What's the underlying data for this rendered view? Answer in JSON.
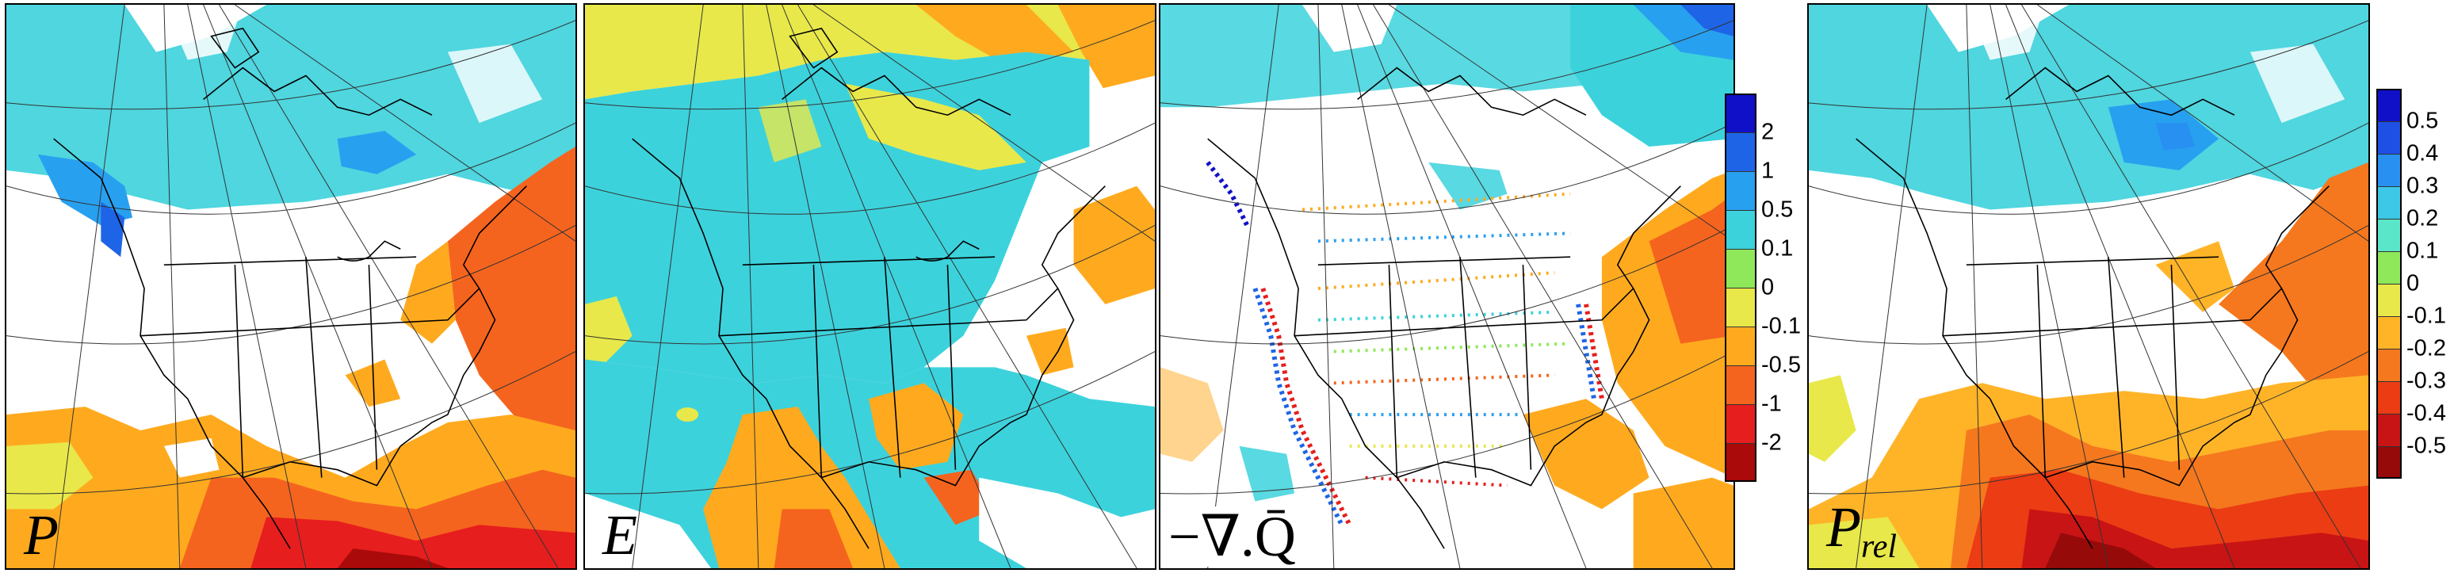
{
  "panels": [
    {
      "id": "P",
      "label_main": "P",
      "label_sub": ""
    },
    {
      "id": "E",
      "label_main": "E",
      "label_sub": ""
    },
    {
      "id": "divQ",
      "label_main": "−∇.Q̄",
      "label_sub": ""
    },
    {
      "id": "Prel",
      "label_main": "P",
      "label_sub": "rel"
    }
  ],
  "colorbars": [
    {
      "id": "absolute",
      "ticks": [
        "2",
        "1",
        "0.5",
        "0.1",
        "0",
        "-0.1",
        "-0.5",
        "-1",
        "-2"
      ],
      "colors": [
        "#1010c8",
        "#1e64e6",
        "#28a0f0",
        "#3cd2dc",
        "#8ee85a",
        "#e8e84a",
        "#ffaa1e",
        "#f5641e",
        "#e61e1e",
        "#aa0a0a"
      ]
    },
    {
      "id": "relative",
      "ticks": [
        "0.5",
        "0.4",
        "0.3",
        "0.2",
        "0.1",
        "0",
        "-0.1",
        "-0.2",
        "-0.3",
        "-0.4",
        "-0.5"
      ],
      "colors": [
        "#1010c8",
        "#1e50e6",
        "#2890f0",
        "#3cc8e6",
        "#5ae6c8",
        "#8ee85a",
        "#e8e84a",
        "#ffb428",
        "#f5781e",
        "#eb3c14",
        "#c81414",
        "#960a0a"
      ]
    }
  ]
}
